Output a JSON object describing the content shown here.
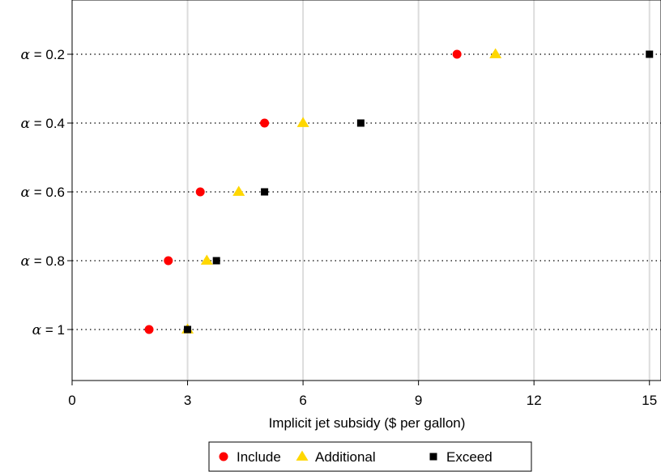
{
  "chart_data": {
    "type": "scatter",
    "xlabel": "Implicit jet subsidy ($ per gallon)",
    "xlim": [
      0,
      15.3
    ],
    "xticks": [
      0,
      3,
      6,
      9,
      12,
      15
    ],
    "grid": "vertical",
    "categories": [
      {
        "symbol": "α",
        "rest": " = 0.2"
      },
      {
        "symbol": "α",
        "rest": " = 0.4"
      },
      {
        "symbol": "α",
        "rest": " = 0.6"
      },
      {
        "symbol": "α",
        "rest": " = 0.8"
      },
      {
        "symbol": "α",
        "rest": " = 1"
      }
    ],
    "series": [
      {
        "name": "Include",
        "marker": "circle",
        "color": "#ff0000",
        "values": [
          10,
          5,
          3.33,
          2.5,
          2
        ]
      },
      {
        "name": "Additional",
        "marker": "triangle",
        "color": "#ffd700",
        "values": [
          11,
          6,
          4.33,
          3.5,
          3
        ]
      },
      {
        "name": "Exceed",
        "marker": "square",
        "color": "#000000",
        "values": [
          15,
          7.5,
          5,
          3.75,
          3
        ]
      }
    ],
    "legend": "bottom"
  }
}
